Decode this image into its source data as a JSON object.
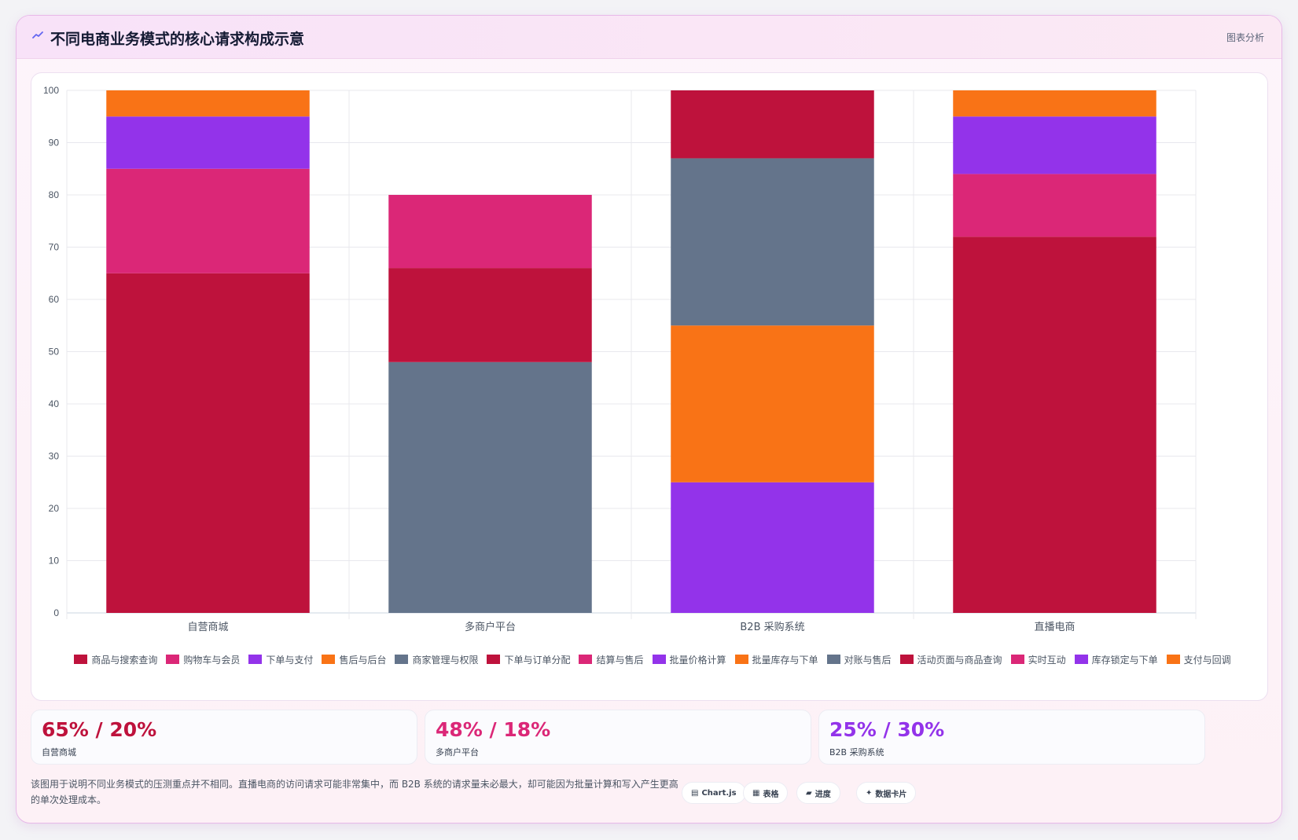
{
  "header": {
    "title": "不同电商业务模式的核心请求构成示意",
    "tag": "图表分析"
  },
  "colors": {
    "crimson": "#be123c",
    "pink": "#db2777",
    "purple": "#9333ea",
    "orange": "#f97316",
    "slate": "#64748b"
  },
  "chart_data": {
    "type": "bar",
    "stacked": true,
    "categories": [
      "自营商城",
      "多商户平台",
      "B2B 采购系统",
      "直播电商"
    ],
    "ylim": [
      0,
      100
    ],
    "yticks": [
      0,
      10,
      20,
      30,
      40,
      50,
      60,
      70,
      80,
      90,
      100
    ],
    "grid": true,
    "legend_position": "bottom",
    "series": [
      {
        "name": "商品与搜索查询",
        "color": "#be123c",
        "values": [
          65,
          0,
          0,
          0
        ]
      },
      {
        "name": "购物车与会员",
        "color": "#db2777",
        "values": [
          20,
          0,
          0,
          0
        ]
      },
      {
        "name": "下单与支付",
        "color": "#9333ea",
        "values": [
          10,
          0,
          0,
          0
        ]
      },
      {
        "name": "售后与后台",
        "color": "#f97316",
        "values": [
          5,
          0,
          0,
          0
        ]
      },
      {
        "name": "商家管理与权限",
        "color": "#64748b",
        "values": [
          0,
          48,
          0,
          0
        ]
      },
      {
        "name": "下单与订单分配",
        "color": "#be123c",
        "values": [
          0,
          18,
          0,
          0
        ]
      },
      {
        "name": "结算与售后",
        "color": "#db2777",
        "values": [
          0,
          14,
          0,
          0
        ]
      },
      {
        "name": "批量价格计算",
        "color": "#9333ea",
        "values": [
          0,
          0,
          25,
          0
        ]
      },
      {
        "name": "批量库存与下单",
        "color": "#f97316",
        "values": [
          0,
          0,
          30,
          0
        ]
      },
      {
        "name": "对账与售后",
        "color": "#64748b",
        "values": [
          0,
          0,
          32,
          0
        ]
      },
      {
        "name": "活动页面与商品查询",
        "color": "#be123c",
        "values": [
          0,
          0,
          13,
          72
        ]
      },
      {
        "name": "实时互动",
        "color": "#db2777",
        "values": [
          0,
          0,
          0,
          12
        ]
      },
      {
        "name": "库存锁定与下单",
        "color": "#9333ea",
        "values": [
          0,
          0,
          0,
          11
        ]
      },
      {
        "name": "支付与回调",
        "color": "#f97316",
        "values": [
          0,
          0,
          0,
          5
        ]
      }
    ]
  },
  "stats": [
    {
      "value": "65% / 20%",
      "label": "自营商城",
      "color": "#be123c"
    },
    {
      "value": "48% / 18%",
      "label": "多商户平台",
      "color": "#db2777"
    },
    {
      "value": "25% / 30%",
      "label": "B2B 采购系统",
      "color": "#9333ea"
    }
  ],
  "footnote": "该图用于说明不同业务模式的压测重点并不相同。直播电商的访问请求可能非常集中，而 B2B 系统的请求量未必最大，却可能因为批量计算和写入产生更高的单次处理成本。",
  "chips": [
    {
      "icon": "▤",
      "label": "Chart.js"
    },
    {
      "icon": "▦",
      "label": "表格"
    },
    {
      "icon": "▰",
      "label": "进度"
    },
    {
      "icon": "✦",
      "label": "数据卡片"
    }
  ]
}
